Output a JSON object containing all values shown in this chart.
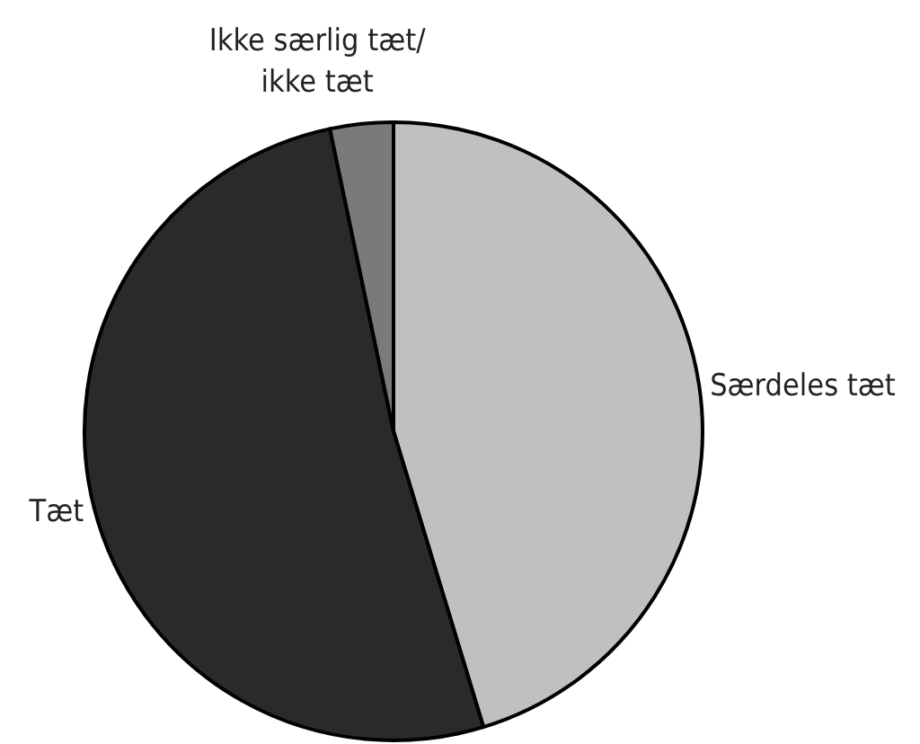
{
  "chart_data": {
    "type": "pie",
    "categories": [
      "Særdeles tæt",
      "Tæt",
      "Ikke særlig tæt/\nikke tæt"
    ],
    "values": [
      45.3,
      51.4,
      3.3
    ],
    "colors": [
      "#c0c0c0",
      "#2a2a2a",
      "#7a7a7a"
    ]
  }
}
